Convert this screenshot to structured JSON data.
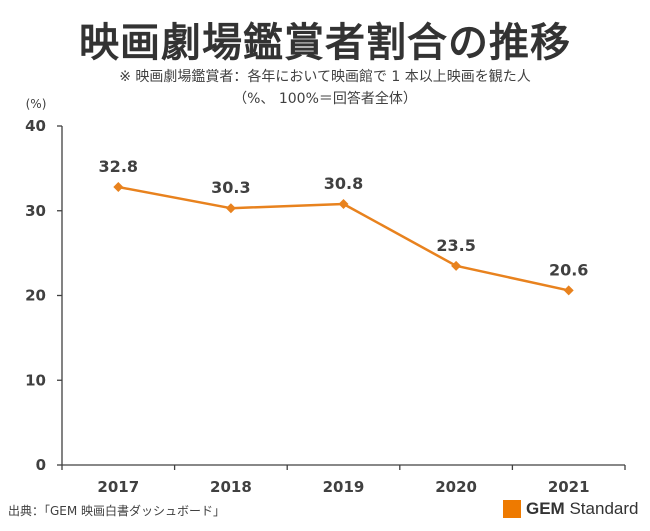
{
  "title": "映画劇場鑑賞者割合の推移",
  "subtitle_line1": "※ 映画劇場鑑賞者：各年において映画館で 1 本以上映画を観た人",
  "subtitle_line2": "（%、 100%＝回答者全体）",
  "source": "出典：「GEM 映画白書ダッシュボード」",
  "logo": {
    "mark": "GEM",
    "name": "Standard"
  },
  "colors": {
    "line": "#E8821E",
    "axis": "#404040",
    "text": "#404040"
  },
  "chart_data": {
    "type": "line",
    "title": "映画劇場鑑賞者割合の推移",
    "xlabel": "",
    "ylabel": "(%)",
    "categories": [
      "2017",
      "2018",
      "2019",
      "2020",
      "2021"
    ],
    "values": [
      32.8,
      30.3,
      30.8,
      23.5,
      20.6
    ],
    "value_labels": [
      "32.8",
      "30.3",
      "30.8",
      "23.5",
      "20.6"
    ],
    "ylim": [
      0,
      40
    ],
    "yticks": [
      0,
      10,
      20,
      30,
      40
    ],
    "grid": false,
    "legend": "none"
  }
}
